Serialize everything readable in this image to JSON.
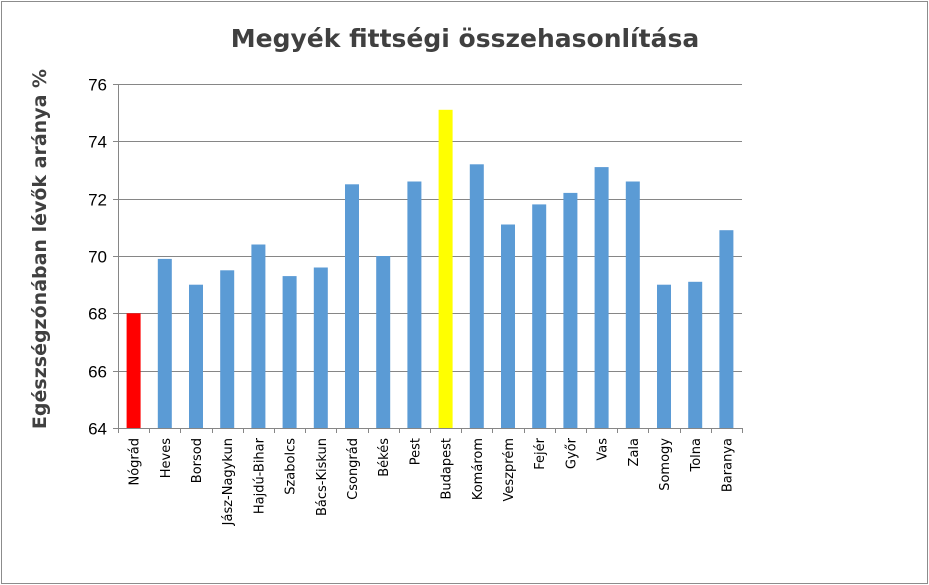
{
  "chart_data": {
    "type": "bar",
    "title": "Megyék fittségi összehasonlítása",
    "ylabel_parts": [
      "Egészségzónában ",
      "lévők aránya %"
    ],
    "xlabel": "",
    "ylim": [
      64,
      76
    ],
    "yticks": [
      64,
      66,
      68,
      70,
      72,
      74,
      76
    ],
    "grid": true,
    "legend": "none",
    "categories": [
      "Nógrád",
      "Heves",
      "Borsod",
      "Jász-Nagykun",
      "Hajdú-Bihar",
      "Szabolcs",
      "Bács-Kiskun",
      "Csongrád",
      "Békés",
      "Pest",
      "Budapest",
      "Komárom",
      "Veszprém",
      "Fejér",
      "Győr",
      "Vas",
      "Zala",
      "Somogy",
      "Tolna",
      "Baranya"
    ],
    "values": [
      68.0,
      69.9,
      69.0,
      69.5,
      70.4,
      69.3,
      69.6,
      72.5,
      70.0,
      72.6,
      75.1,
      73.2,
      71.1,
      71.8,
      72.2,
      73.1,
      72.6,
      69.0,
      69.1,
      70.9
    ],
    "colors": {
      "default": "#5B9BD5",
      "highlight_low": "#FF0000",
      "highlight_high": "#FFFF00"
    },
    "bar_colors": [
      "#FF0000",
      "#5B9BD5",
      "#5B9BD5",
      "#5B9BD5",
      "#5B9BD5",
      "#5B9BD5",
      "#5B9BD5",
      "#5B9BD5",
      "#5B9BD5",
      "#5B9BD5",
      "#FFFF00",
      "#5B9BD5",
      "#5B9BD5",
      "#5B9BD5",
      "#5B9BD5",
      "#5B9BD5",
      "#5B9BD5",
      "#5B9BD5",
      "#5B9BD5",
      "#5B9BD5"
    ]
  }
}
